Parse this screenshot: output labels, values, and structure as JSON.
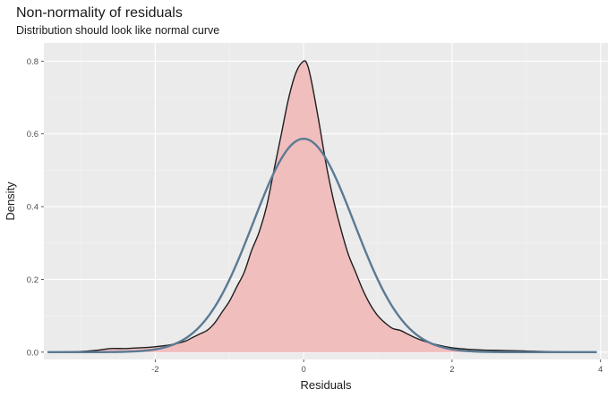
{
  "chart_data": {
    "type": "area",
    "title": "Non-normality of residuals",
    "subtitle": "Distribution should look like normal curve",
    "xlabel": "Residuals",
    "ylabel": "Density",
    "xlim": [
      -3.5,
      4.1
    ],
    "ylim": [
      -0.02,
      0.85
    ],
    "x_ticks": [
      -2,
      0,
      2,
      4
    ],
    "x_tick_labels": [
      "-2",
      "0",
      "2",
      "4"
    ],
    "y_ticks": [
      0.0,
      0.2,
      0.4,
      0.6,
      0.8
    ],
    "y_tick_labels": [
      "0.0",
      "0.2",
      "0.4",
      "0.6",
      "0.8"
    ],
    "grid": true,
    "series": [
      {
        "kind": "density-fill",
        "fill_color": "#f1bebe",
        "line_color": "#1f1f1f",
        "x": [
          -3.45,
          -3.0,
          -2.8,
          -2.6,
          -2.4,
          -2.2,
          -2.0,
          -1.8,
          -1.6,
          -1.5,
          -1.4,
          -1.3,
          -1.2,
          -1.1,
          -1.0,
          -0.9,
          -0.8,
          -0.7,
          -0.6,
          -0.5,
          -0.4,
          -0.3,
          -0.2,
          -0.1,
          0.0,
          0.05,
          0.1,
          0.2,
          0.3,
          0.4,
          0.5,
          0.6,
          0.7,
          0.8,
          0.9,
          1.0,
          1.1,
          1.2,
          1.3,
          1.4,
          1.5,
          1.6,
          1.8,
          2.0,
          2.2,
          2.4,
          2.6,
          2.8,
          3.0,
          3.2,
          3.4,
          3.6,
          3.8,
          3.95
        ],
        "y": [
          0.0,
          0.002,
          0.005,
          0.01,
          0.01,
          0.012,
          0.015,
          0.02,
          0.03,
          0.04,
          0.05,
          0.06,
          0.08,
          0.11,
          0.14,
          0.18,
          0.22,
          0.28,
          0.33,
          0.4,
          0.5,
          0.6,
          0.7,
          0.77,
          0.8,
          0.79,
          0.75,
          0.64,
          0.52,
          0.42,
          0.34,
          0.27,
          0.22,
          0.17,
          0.13,
          0.1,
          0.08,
          0.065,
          0.06,
          0.05,
          0.04,
          0.032,
          0.02,
          0.012,
          0.008,
          0.006,
          0.005,
          0.004,
          0.003,
          0.002,
          0.001,
          0.0005,
          0.0,
          0.0
        ]
      },
      {
        "kind": "normal-curve",
        "line_color": "#5b7a94",
        "mean": 0.0,
        "sd": 0.68,
        "x_range": [
          -3.45,
          3.95
        ]
      }
    ]
  }
}
